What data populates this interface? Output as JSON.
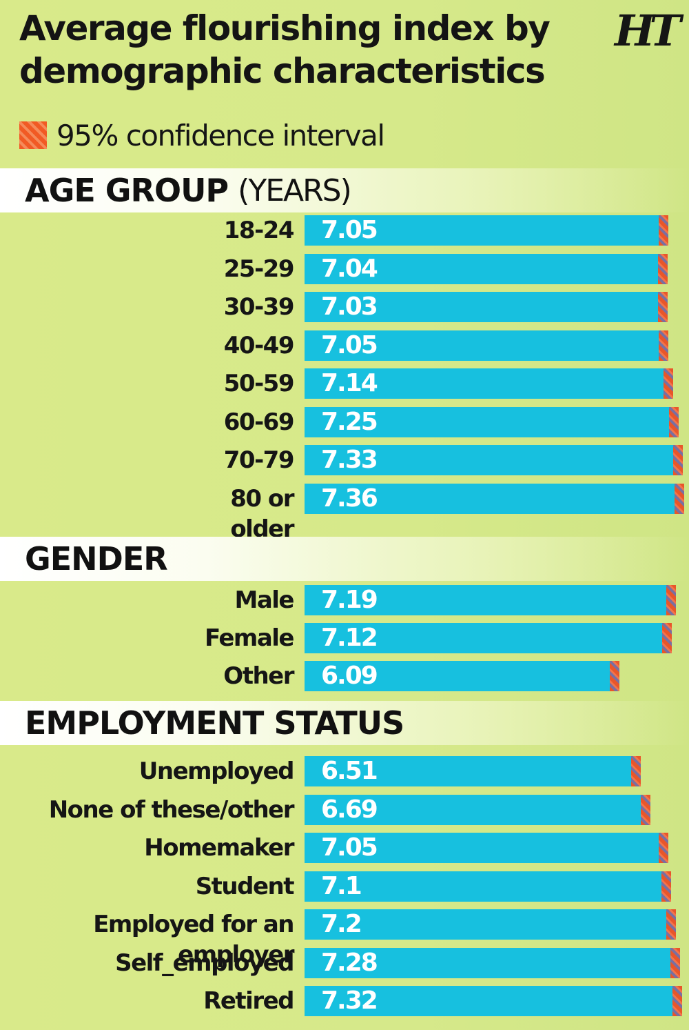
{
  "title_line1": "Average flourishing index by",
  "title_line2": "demographic characteristics",
  "logo": "HT",
  "legend": {
    "label": "95% confidence interval",
    "color": "#f15a24"
  },
  "colors": {
    "bar": "#17c0df",
    "ci": "#f15a24",
    "background": "#d6e98a"
  },
  "sections": [
    {
      "name": "AGE GROUP",
      "sub": "(YEARS)"
    },
    {
      "name": "GENDER",
      "sub": ""
    },
    {
      "name": "EMPLOYMENT STATUS",
      "sub": ""
    }
  ],
  "chart_data": {
    "type": "bar",
    "orientation": "horizontal",
    "title": "Average flourishing index by demographic characteristics",
    "legend": [
      "95% confidence interval"
    ],
    "groups": [
      {
        "name": "AGE GROUP (YEARS)",
        "categories": [
          "18-24",
          "25-29",
          "30-39",
          "40-49",
          "50-59",
          "60-69",
          "70-79",
          "80 or\nolder"
        ],
        "values": [
          7.05,
          7.04,
          7.03,
          7.05,
          7.14,
          7.25,
          7.33,
          7.36
        ],
        "value_labels": [
          "7.05",
          "7.04",
          "7.03",
          "7.05",
          "7.14",
          "7.25",
          "7.33",
          "7.36"
        ],
        "ci_low": [
          7.05,
          7.04,
          7.03,
          7.05,
          7.14,
          7.25,
          7.33,
          7.36
        ],
        "ci_high": [
          7.11,
          7.09,
          7.08,
          7.09,
          7.18,
          7.29,
          7.38,
          7.41
        ]
      },
      {
        "name": "GENDER",
        "categories": [
          "Male",
          "Female",
          "Other"
        ],
        "values": [
          7.19,
          7.12,
          6.09
        ],
        "value_labels": [
          "7.19",
          "7.12",
          "6.09"
        ],
        "ci_low": [
          7.19,
          7.12,
          6.09
        ],
        "ci_high": [
          7.24,
          7.17,
          6.22
        ]
      },
      {
        "name": "EMPLOYMENT STATUS",
        "categories": [
          "Unemployed",
          "None of these/other",
          "Homemaker",
          "Student",
          "Employed for an employer",
          "Self_employed",
          "Retired"
        ],
        "values": [
          6.51,
          6.69,
          7.05,
          7.1,
          7.2,
          7.28,
          7.32
        ],
        "value_labels": [
          "6.51",
          "6.69",
          "7.05",
          "7.1",
          "7.2",
          "7.28",
          "7.32"
        ],
        "ci_low": [
          6.51,
          6.69,
          7.05,
          7.1,
          7.2,
          7.28,
          7.32
        ],
        "ci_high": [
          6.61,
          6.79,
          7.1,
          7.16,
          7.26,
          7.34,
          7.37
        ]
      }
    ],
    "xlim": [
      0,
      7.45
    ]
  }
}
